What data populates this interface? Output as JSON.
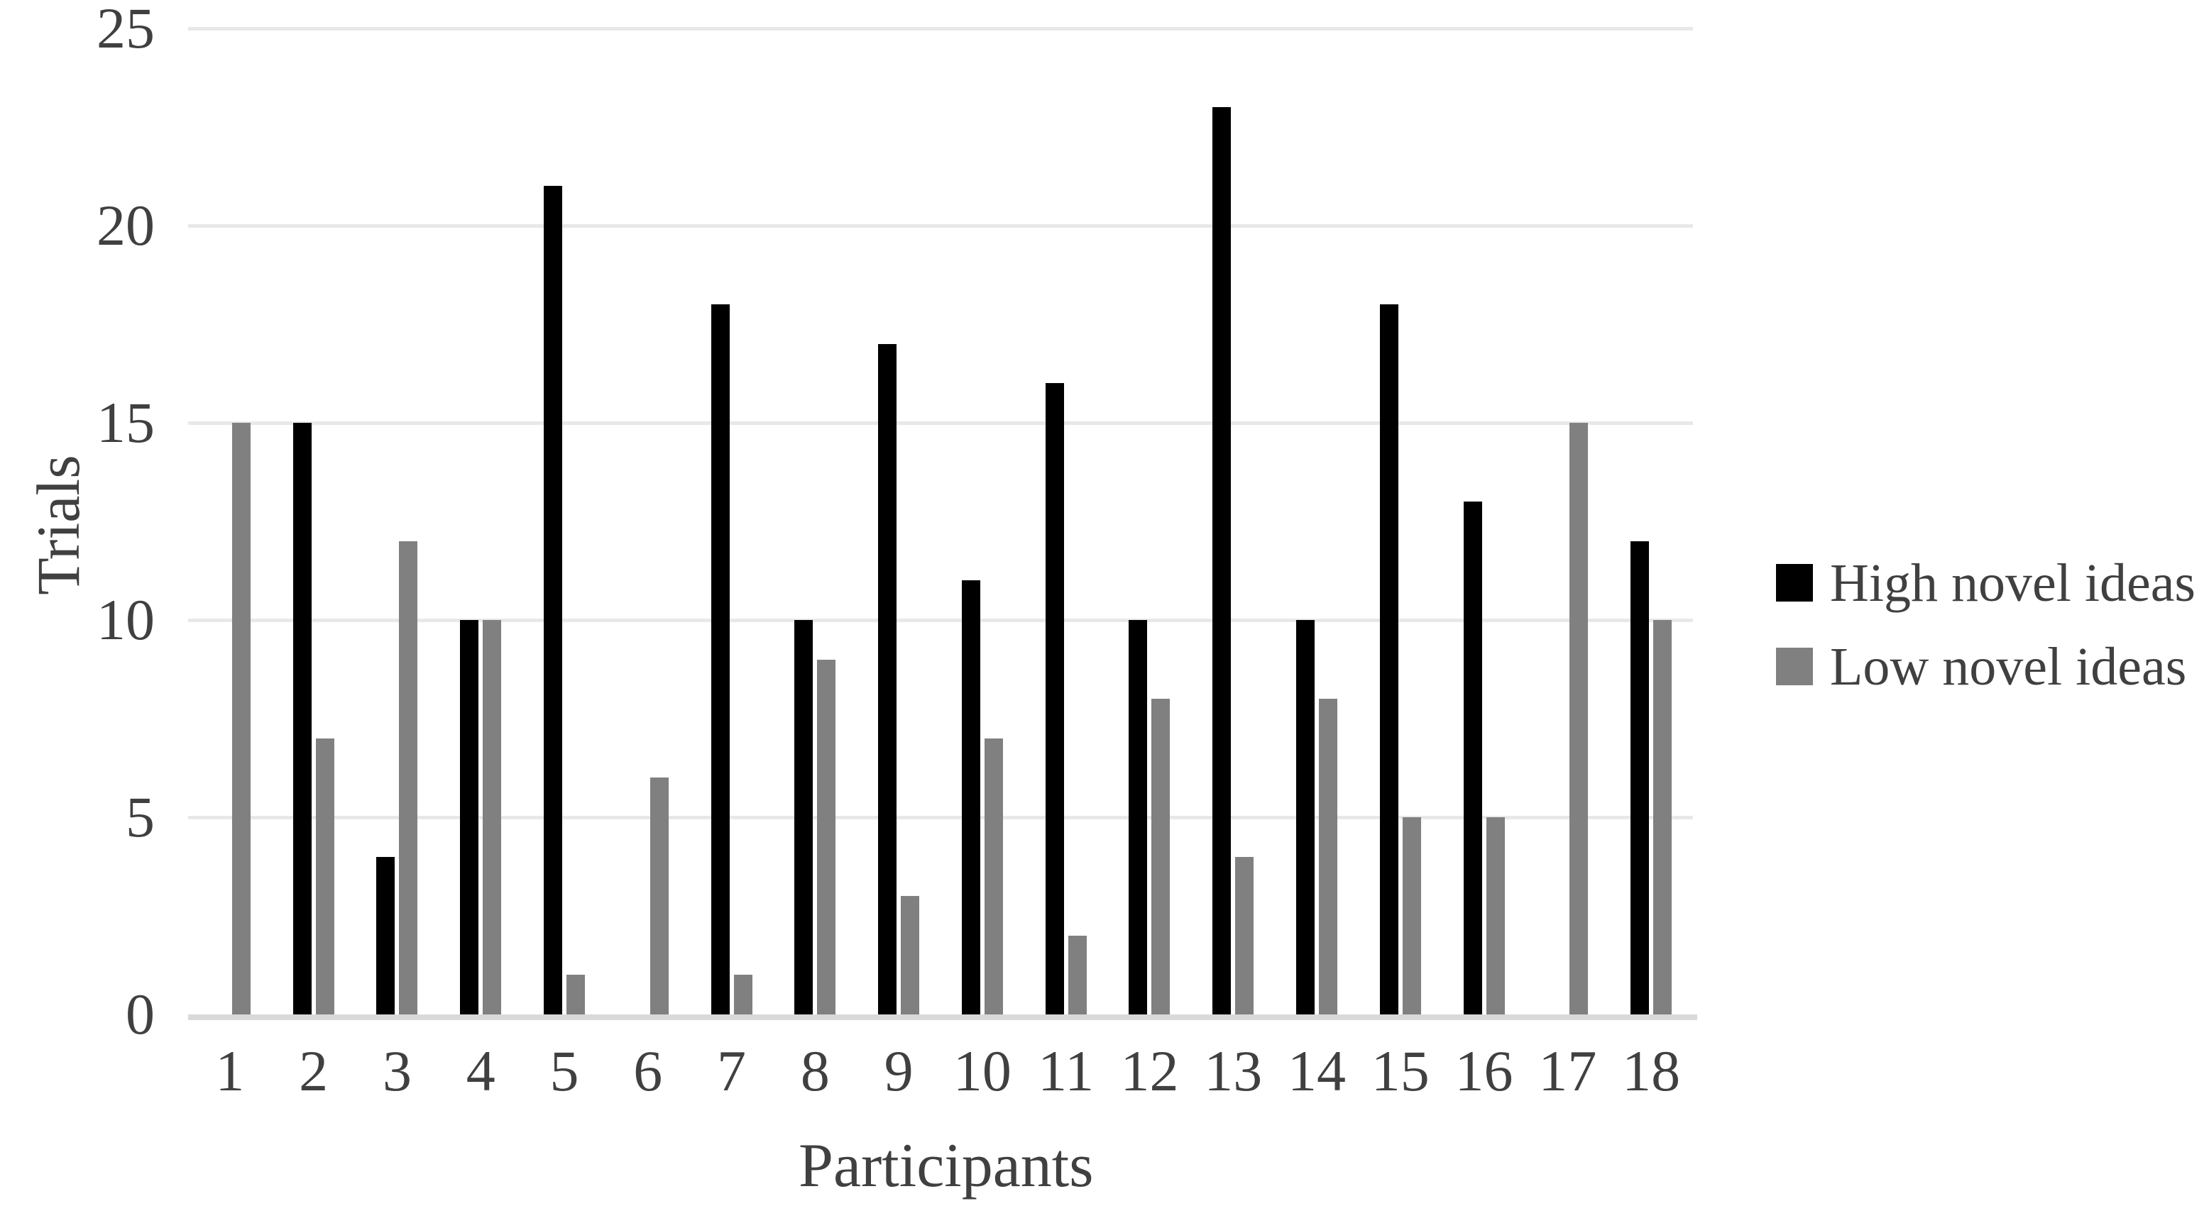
{
  "chart_data": {
    "type": "bar",
    "title": "",
    "xlabel": "Participants",
    "ylabel": "Trials",
    "categories": [
      "1",
      "2",
      "3",
      "4",
      "5",
      "6",
      "7",
      "8",
      "9",
      "10",
      "11",
      "12",
      "13",
      "14",
      "15",
      "16",
      "17",
      "18"
    ],
    "series": [
      {
        "name": "High novel ideas",
        "color": "#000000",
        "values": [
          0,
          15,
          4,
          10,
          21,
          0,
          18,
          10,
          17,
          11,
          16,
          10,
          23,
          10,
          18,
          13,
          0,
          12
        ]
      },
      {
        "name": "Low novel ideas",
        "color": "#808080",
        "values": [
          15,
          7,
          12,
          10,
          1,
          6,
          1,
          9,
          3,
          7,
          2,
          8,
          4,
          8,
          5,
          5,
          15,
          10
        ]
      }
    ],
    "ylim": [
      0,
      25
    ],
    "yticks": [
      0,
      5,
      10,
      15,
      20,
      25
    ],
    "grid": "horizontal-only",
    "legend_position": "right-middle"
  },
  "colors": {
    "background": "#ffffff",
    "text": "#404040",
    "gridline": "#e8e8e8",
    "baseline": "#d9d9d9",
    "high_series": "#000000",
    "low_series": "#808080"
  }
}
